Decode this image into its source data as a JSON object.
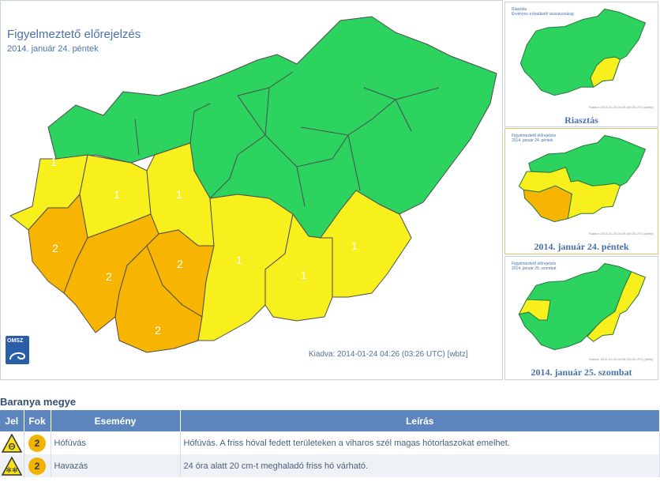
{
  "main_map": {
    "title": "Figyelmeztető előrejelzés",
    "date": "2014. január 24. péntek",
    "issued": "Kiadva: 2014-01-24 04:26 (03:26 UTC) [wbtz]",
    "logo_text": "OMSZ",
    "colors": {
      "green": "#2dd35f",
      "yellow": "#f7f01c",
      "orange": "#f7b400",
      "border": "#4d4d4d"
    },
    "regions": [
      {
        "id": "north-west",
        "level": "",
        "color": "green"
      },
      {
        "id": "north-center",
        "level": "",
        "color": "green"
      },
      {
        "id": "north-east",
        "level": "",
        "color": "green"
      },
      {
        "id": "west-1",
        "level": "1",
        "color": "yellow"
      },
      {
        "id": "west-center-1",
        "level": "1",
        "color": "yellow"
      },
      {
        "id": "center-north-1",
        "level": "1",
        "color": "yellow"
      },
      {
        "id": "south-west-2",
        "level": "2",
        "color": "orange"
      },
      {
        "id": "south-west-mid-2",
        "level": "2",
        "color": "orange"
      },
      {
        "id": "south-center-2",
        "level": "2",
        "color": "orange"
      },
      {
        "id": "south-2",
        "level": "2",
        "color": "orange"
      },
      {
        "id": "center-1",
        "level": "1",
        "color": "yellow"
      },
      {
        "id": "south-east-1",
        "level": "1",
        "color": "yellow"
      },
      {
        "id": "east-1",
        "level": "1",
        "color": "yellow"
      }
    ]
  },
  "thumbnails": [
    {
      "caption": "Riasztás",
      "small_title": "Riasztás",
      "small_sub": "Érvényes a kiadástól visszavonásig",
      "footer": "Kiadva: 2014-01-24 04:26 (03:26 UTC) [wbtz]"
    },
    {
      "caption": "2014. január 24. péntek",
      "small_title": "Figyelmeztető előrejelzés",
      "small_sub": "2014. január 24. péntek",
      "footer": "Kiadva: 2014-01-24 04:26 (03:26 UTC) [wbtz]"
    },
    {
      "caption": "2014. január 25. szombat",
      "small_title": "Figyelmeztető előrejelzés",
      "small_sub": "2014. január 25. szombat",
      "footer": "Kiadva: 2014-01-24 04:26 (03:26 UTC) [wbtz]"
    }
  ],
  "county": {
    "title": "Baranya megye",
    "columns": {
      "jel": "Jel",
      "fok": "Fok",
      "esemeny": "Esemény",
      "leiras": "Leírás"
    },
    "rows": [
      {
        "icon": "wind-snow-warning-icon",
        "level": "2",
        "event": "Hófúvás",
        "description": "Hófúvás. A friss hóval fedett területeken a viharos szél magas hótorlaszokat emelhet."
      },
      {
        "icon": "snowfall-warning-icon",
        "level": "2",
        "event": "Havazás",
        "description": "24 óra alatt 20 cm-t meghaladó friss hó várható."
      }
    ]
  }
}
